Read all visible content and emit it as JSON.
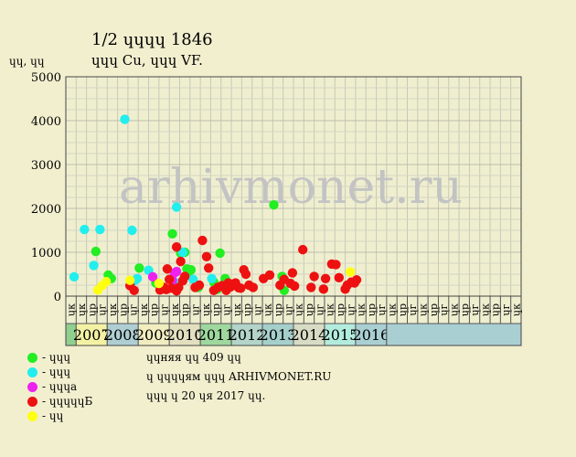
{
  "header": {
    "title": "1/2 ɥɥɥɥ 1846",
    "subtitle": "ɥɥɥ Cu, ɥɥɥ VF.",
    "y_unit": "ɥɥ, ɥɥ"
  },
  "watermark": "arhivmonet.ru",
  "info": {
    "line1": "ɥɥняя ɥɥ 409 ɥɥ",
    "line2": "ɥ ɥɥɥɥям ɥɥɥ ARHIVMONET.RU",
    "line3": "ɥɥɥ ɥ 20 ɥя 2017 ɥɥ."
  },
  "legend": [
    {
      "label": "- ɥɥɥ",
      "color": "#22ee22"
    },
    {
      "label": "- ɥɥɥ",
      "color": "#22eeee"
    },
    {
      "label": "- ɥɥɥа",
      "color": "#ee22ee"
    },
    {
      "label": "- ɥɥɥɥɥБ",
      "color": "#ee1111"
    },
    {
      "label": "- ɥɥ",
      "color": "#ffff11"
    }
  ],
  "chart_data": {
    "type": "scatter",
    "ylim": [
      0,
      5000
    ],
    "yticks": [
      0,
      1000,
      2000,
      3000,
      4000,
      5000
    ],
    "periods": [
      "ɥк",
      "ɥк",
      "ɥр",
      "ɥг",
      "ɥк",
      "ɥр",
      "ɥг",
      "ɥк",
      "ɥр",
      "ɥг",
      "ɥк",
      "ɥр",
      "ɥг",
      "ɥк",
      "ɥр",
      "ɥг",
      "ɥк",
      "ɥр",
      "ɥг",
      "ɥк",
      "ɥр",
      "ɥг",
      "ɥк",
      "ɥр",
      "ɥг",
      "ɥк",
      "ɥр",
      "ɥг",
      "ɥк",
      "ɥр",
      "ɥг",
      "ɥк",
      "ɥр",
      "ɥг",
      "ɥк",
      "ɥр",
      "ɥг",
      "ɥк",
      "ɥр",
      "ɥг",
      "ɥк",
      "ɥр",
      "ɥг",
      "ɥк"
    ],
    "years": [
      {
        "label": "",
        "start": 0,
        "count": 1,
        "color": "#8fd08f"
      },
      {
        "label": "2007",
        "start": 1,
        "count": 3,
        "color": "#f3f2a4"
      },
      {
        "label": "2008",
        "start": 4,
        "count": 3,
        "color": "#aeced3"
      },
      {
        "label": "2009",
        "start": 7,
        "count": 3,
        "color": "#f1edbf"
      },
      {
        "label": "2010",
        "start": 10,
        "count": 3,
        "color": "#e3e0c0"
      },
      {
        "label": "2011",
        "start": 13,
        "count": 3,
        "color": "#9ed89e"
      },
      {
        "label": "2012",
        "start": 16,
        "count": 3,
        "color": "#b3d4c8"
      },
      {
        "label": "2013",
        "start": 19,
        "count": 3,
        "color": "#a5cfcb"
      },
      {
        "label": "2014",
        "start": 22,
        "count": 3,
        "color": "#d8dcc4"
      },
      {
        "label": "2015",
        "start": 25,
        "count": 3,
        "color": "#b2ecdc"
      },
      {
        "label": "2016",
        "start": 28,
        "count": 3,
        "color": "#a9cfd3"
      },
      {
        "label": "",
        "start": 31,
        "count": 13,
        "color": "#a9cfd3"
      }
    ],
    "series": [
      {
        "key": "green",
        "color": "#22ee22",
        "points": [
          [
            2.4,
            1020
          ],
          [
            3.6,
            480
          ],
          [
            3.9,
            400
          ],
          [
            6.6,
            640
          ],
          [
            8.2,
            300
          ],
          [
            9.8,
            1420
          ],
          [
            10.6,
            980
          ],
          [
            11.0,
            1000
          ],
          [
            11.2,
            620
          ],
          [
            11.4,
            560
          ],
          [
            11.6,
            600
          ],
          [
            12.3,
            200
          ],
          [
            13.8,
            320
          ],
          [
            14.1,
            150
          ],
          [
            14.4,
            980
          ],
          [
            14.9,
            400
          ],
          [
            19.6,
            2080
          ],
          [
            20.4,
            450
          ],
          [
            20.6,
            130
          ]
        ]
      },
      {
        "key": "cyan",
        "color": "#22eeee",
        "points": [
          [
            0.3,
            440
          ],
          [
            1.3,
            1520
          ],
          [
            2.2,
            700
          ],
          [
            2.8,
            1520
          ],
          [
            5.2,
            4030
          ],
          [
            5.9,
            1500
          ],
          [
            6.1,
            350
          ],
          [
            6.4,
            400
          ],
          [
            7.5,
            590
          ],
          [
            10.2,
            2030
          ],
          [
            10.4,
            300
          ],
          [
            10.8,
            1000
          ],
          [
            11.8,
            380
          ],
          [
            13.6,
            400
          ]
        ]
      },
      {
        "key": "magenta",
        "color": "#ee22ee",
        "points": [
          [
            7.9,
            440
          ],
          [
            9.8,
            360
          ],
          [
            10.0,
            530
          ],
          [
            10.2,
            560
          ]
        ]
      },
      {
        "key": "red",
        "color": "#ee1111",
        "points": [
          [
            5.7,
            240
          ],
          [
            6.1,
            130
          ],
          [
            8.6,
            140
          ],
          [
            9.0,
            200
          ],
          [
            9.2,
            150
          ],
          [
            9.3,
            620
          ],
          [
            9.5,
            380
          ],
          [
            9.7,
            180
          ],
          [
            10.2,
            120
          ],
          [
            10.4,
            200
          ],
          [
            10.6,
            790
          ],
          [
            10.8,
            350
          ],
          [
            11.0,
            450
          ],
          [
            12.0,
            200
          ],
          [
            12.4,
            250
          ],
          [
            12.7,
            1270
          ],
          [
            13.1,
            900
          ],
          [
            13.3,
            640
          ],
          [
            13.8,
            130
          ],
          [
            14.2,
            200
          ],
          [
            14.6,
            240
          ],
          [
            15.0,
            130
          ],
          [
            15.2,
            300
          ],
          [
            15.4,
            210
          ],
          [
            15.6,
            250
          ],
          [
            15.9,
            300
          ],
          [
            16.2,
            190
          ],
          [
            16.4,
            180
          ],
          [
            16.7,
            600
          ],
          [
            16.9,
            500
          ],
          [
            17.2,
            250
          ],
          [
            17.6,
            200
          ],
          [
            18.6,
            400
          ],
          [
            19.2,
            480
          ],
          [
            20.2,
            250
          ],
          [
            20.6,
            380
          ],
          [
            21.2,
            290
          ],
          [
            21.4,
            530
          ],
          [
            21.6,
            230
          ],
          [
            22.4,
            1060
          ],
          [
            23.2,
            200
          ],
          [
            23.5,
            450
          ],
          [
            24.4,
            160
          ],
          [
            24.6,
            400
          ],
          [
            25.2,
            730
          ],
          [
            25.6,
            720
          ],
          [
            25.9,
            420
          ],
          [
            26.5,
            160
          ],
          [
            26.7,
            250
          ],
          [
            27.1,
            320
          ],
          [
            27.4,
            300
          ],
          [
            27.6,
            370
          ],
          [
            10.2,
            1120
          ]
        ]
      },
      {
        "key": "yellow",
        "color": "#ffff11",
        "points": [
          [
            2.6,
            140
          ],
          [
            3.0,
            240
          ],
          [
            3.4,
            330
          ],
          [
            5.7,
            360
          ],
          [
            8.5,
            290
          ],
          [
            27.0,
            550
          ]
        ]
      }
    ]
  }
}
